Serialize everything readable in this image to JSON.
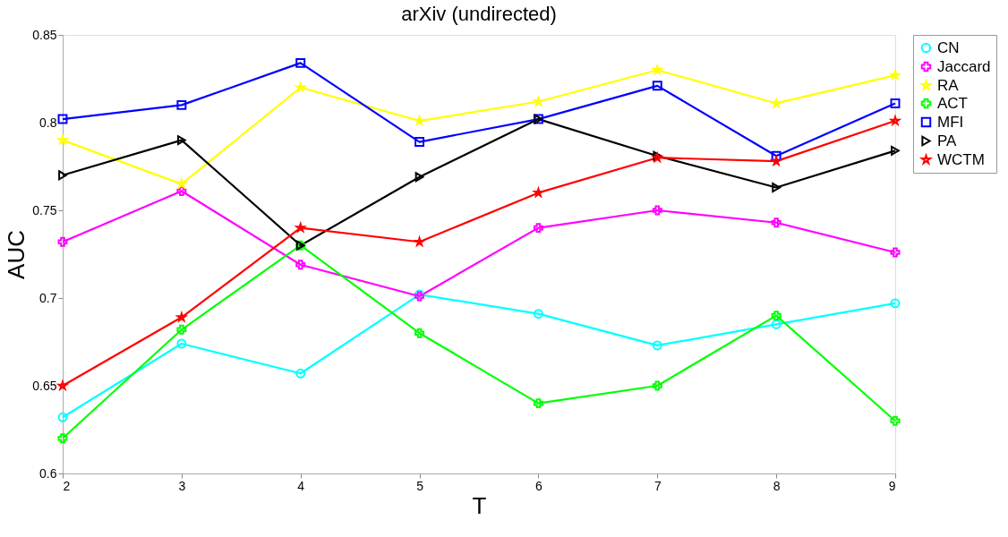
{
  "chart_data": {
    "type": "line",
    "title": "arXiv (undirected)",
    "xlabel": "T",
    "ylabel": "AUC",
    "x": [
      2,
      3,
      4,
      5,
      6,
      7,
      8,
      9
    ],
    "series": [
      {
        "name": "CN",
        "color": "#00ffff",
        "marker": "circle",
        "values": [
          0.632,
          0.674,
          0.657,
          0.702,
          0.691,
          0.673,
          0.685,
          0.697
        ]
      },
      {
        "name": "Jaccard",
        "color": "#ff00ff",
        "marker": "cross",
        "values": [
          0.732,
          0.761,
          0.719,
          0.701,
          0.74,
          0.75,
          0.743,
          0.726
        ]
      },
      {
        "name": "RA",
        "color": "#ffff00",
        "marker": "star",
        "values": [
          0.79,
          0.765,
          0.82,
          0.801,
          0.812,
          0.83,
          0.811,
          0.827
        ]
      },
      {
        "name": "ACT",
        "color": "#00ff00",
        "marker": "cross",
        "values": [
          0.62,
          0.682,
          0.73,
          0.68,
          0.64,
          0.65,
          0.69,
          0.63
        ]
      },
      {
        "name": "MFI",
        "color": "#0000ff",
        "marker": "square",
        "values": [
          0.802,
          0.81,
          0.834,
          0.789,
          0.802,
          0.821,
          0.781,
          0.811
        ]
      },
      {
        "name": "PA",
        "color": "#000000",
        "marker": "triangle",
        "values": [
          0.77,
          0.79,
          0.73,
          0.769,
          0.802,
          0.781,
          0.763,
          0.784
        ]
      },
      {
        "name": "WCTM",
        "color": "#ff0000",
        "marker": "star",
        "values": [
          0.65,
          0.689,
          0.74,
          0.732,
          0.76,
          0.78,
          0.778,
          0.801
        ]
      }
    ],
    "xlim": [
      2,
      9
    ],
    "xticks": [
      2,
      3,
      4,
      5,
      6,
      7,
      8,
      9
    ],
    "ylim": [
      0.6,
      0.85
    ],
    "yticks": [
      0.6,
      0.65,
      0.7,
      0.75,
      0.8,
      0.85
    ],
    "grid": false,
    "legend": "top right",
    "line_style": "solid"
  }
}
